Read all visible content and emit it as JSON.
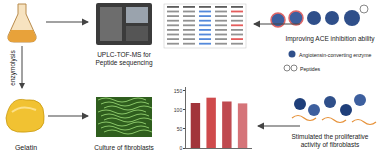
{
  "diagram": {
    "left": {
      "process": "enzymolysis",
      "material": "Gelatin"
    },
    "top_middle": {
      "caption": [
        "UPLC-TOF-MS for",
        "Peptide sequencing"
      ]
    },
    "top_right": {
      "caption": "Improving ACE inhibition ability",
      "legend": [
        {
          "label": "Angiotensin-converting enzyme"
        },
        {
          "label": "Peptides"
        }
      ]
    },
    "bottom_middle": {
      "caption": "Culture of fibroblasts"
    },
    "bottom_right": {
      "caption": [
        "Stimulated the proliferative",
        "activity of fibroblasts"
      ]
    }
  },
  "chart_data": {
    "type": "bar",
    "categories": [
      null,
      null,
      null,
      null
    ],
    "values": [
      118,
      132,
      122,
      117
    ],
    "colors": [
      "#a2343b",
      "#cf4a4c",
      "#bf4a50",
      "#d57479"
    ],
    "ylim": [
      0,
      160
    ],
    "yticks": [
      0,
      50,
      100,
      150
    ],
    "grid": false,
    "tick_labels": "y"
  }
}
